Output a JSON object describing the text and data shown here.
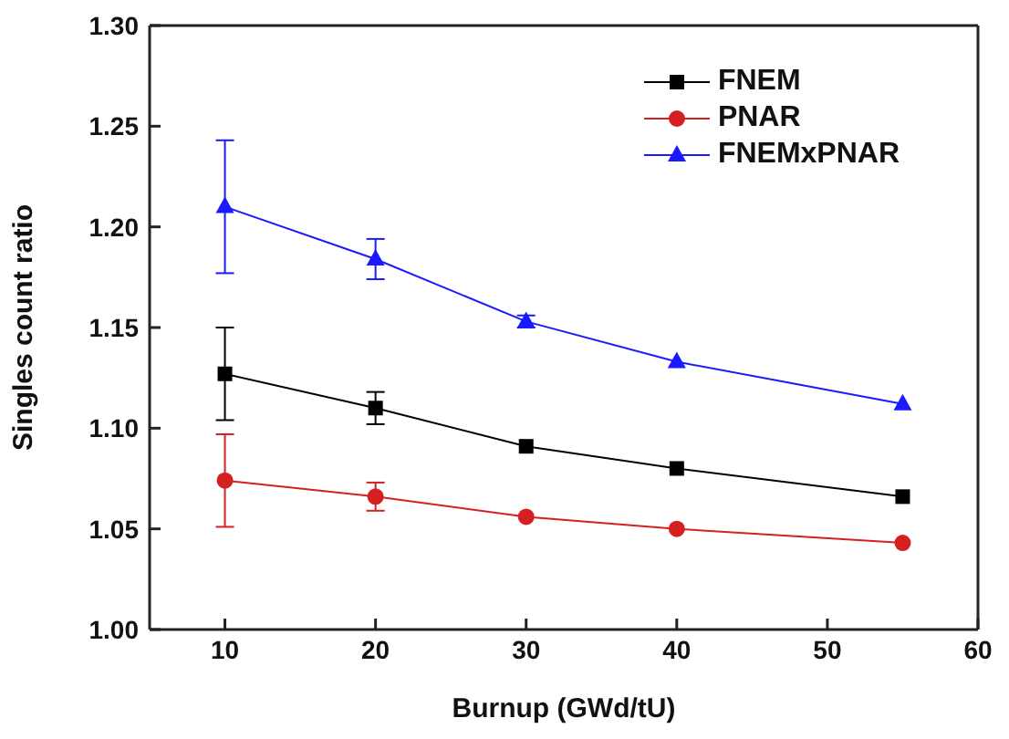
{
  "chart_data": {
    "type": "line",
    "xlabel": "Burnup (GWd/tU)",
    "ylabel": "Singles count ratio",
    "x": [
      10,
      20,
      30,
      40,
      55
    ],
    "xlim": [
      5,
      60
    ],
    "xticks": [
      10,
      20,
      30,
      40,
      50,
      60
    ],
    "ylim": [
      1.0,
      1.3
    ],
    "yticks": [
      {
        "value": 1.0,
        "label": "1.00"
      },
      {
        "value": 1.05,
        "label": "1.05"
      },
      {
        "value": 1.1,
        "label": "1.10"
      },
      {
        "value": 1.15,
        "label": "1.15"
      },
      {
        "value": 1.2,
        "label": "1.20"
      },
      {
        "value": 1.25,
        "label": "1.25"
      },
      {
        "value": 1.3,
        "label": "1.30"
      }
    ],
    "grid": false,
    "legend": "top right",
    "line_style": "solid",
    "series": [
      {
        "name": "FNEM",
        "color": "#000000",
        "marker": "square",
        "values": [
          1.127,
          1.11,
          1.091,
          1.08,
          1.066
        ],
        "errors": [
          0.023,
          0.008,
          null,
          null,
          null
        ]
      },
      {
        "name": "PNAR",
        "color": "#d42020",
        "marker": "circle",
        "values": [
          1.074,
          1.066,
          1.056,
          1.05,
          1.043
        ],
        "errors": [
          0.023,
          0.007,
          null,
          null,
          null
        ]
      },
      {
        "name": "FNEMxPNAR",
        "color": "#1a1aff",
        "marker": "triangle",
        "values": [
          1.21,
          1.184,
          1.153,
          1.133,
          1.112
        ],
        "errors": [
          0.033,
          0.01,
          0.003,
          null,
          null
        ]
      }
    ]
  }
}
